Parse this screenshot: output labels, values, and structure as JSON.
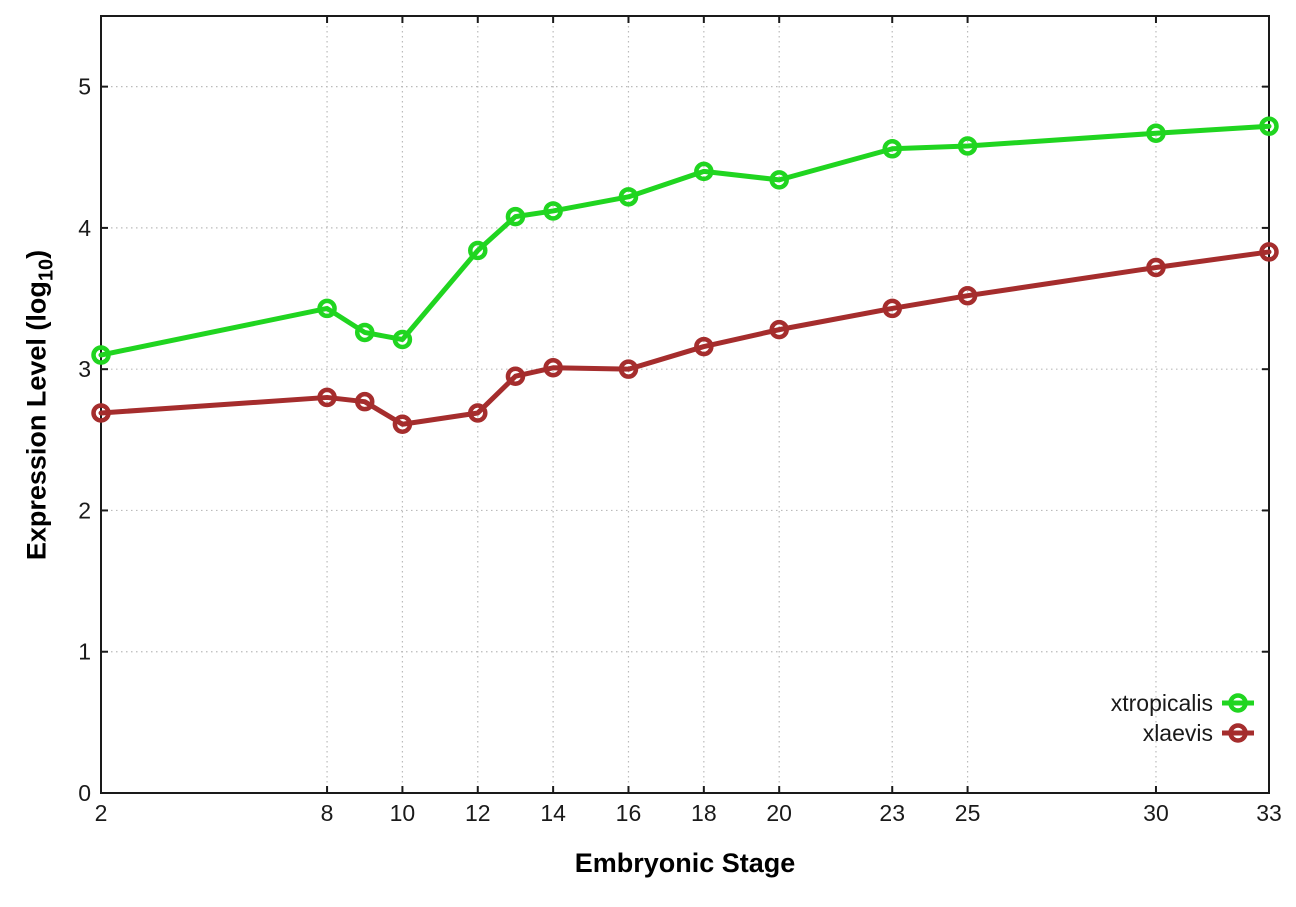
{
  "chart_data": {
    "type": "line",
    "title": "",
    "xlabel": "Embryonic Stage",
    "ylabel": "Expression Level (log10)",
    "ylabel_parts": {
      "main": "Expression Level (log",
      "sub": "10",
      "end": ")"
    },
    "x": [
      2,
      8,
      9,
      10,
      12,
      13,
      14,
      16,
      18,
      20,
      23,
      25,
      30,
      33
    ],
    "series": [
      {
        "name": "xtropicalis",
        "color": "#20d520",
        "values": [
          3.1,
          3.43,
          3.26,
          3.21,
          3.84,
          4.08,
          4.12,
          4.22,
          4.4,
          4.34,
          4.56,
          4.58,
          4.67,
          4.72
        ]
      },
      {
        "name": "xlaevis",
        "color": "#a52d2d",
        "values": [
          2.69,
          2.8,
          2.77,
          2.61,
          2.69,
          2.95,
          3.01,
          3.0,
          3.16,
          3.28,
          3.43,
          3.52,
          3.72,
          3.83
        ]
      }
    ],
    "x_ticks": [
      2,
      8,
      10,
      12,
      14,
      16,
      18,
      20,
      23,
      25,
      30,
      33
    ],
    "y_ticks": [
      0,
      1,
      2,
      3,
      4,
      5
    ],
    "xlim": [
      2,
      33
    ],
    "ylim": [
      0,
      5.5
    ],
    "grid": true,
    "legend_position": "bottom-right",
    "marker": "open-circle",
    "line_width": 5,
    "background": "#ffffff",
    "border_color": "#1a1a1a",
    "grid_color": "#bbbbbb",
    "text_color": "#1a1a1a"
  }
}
